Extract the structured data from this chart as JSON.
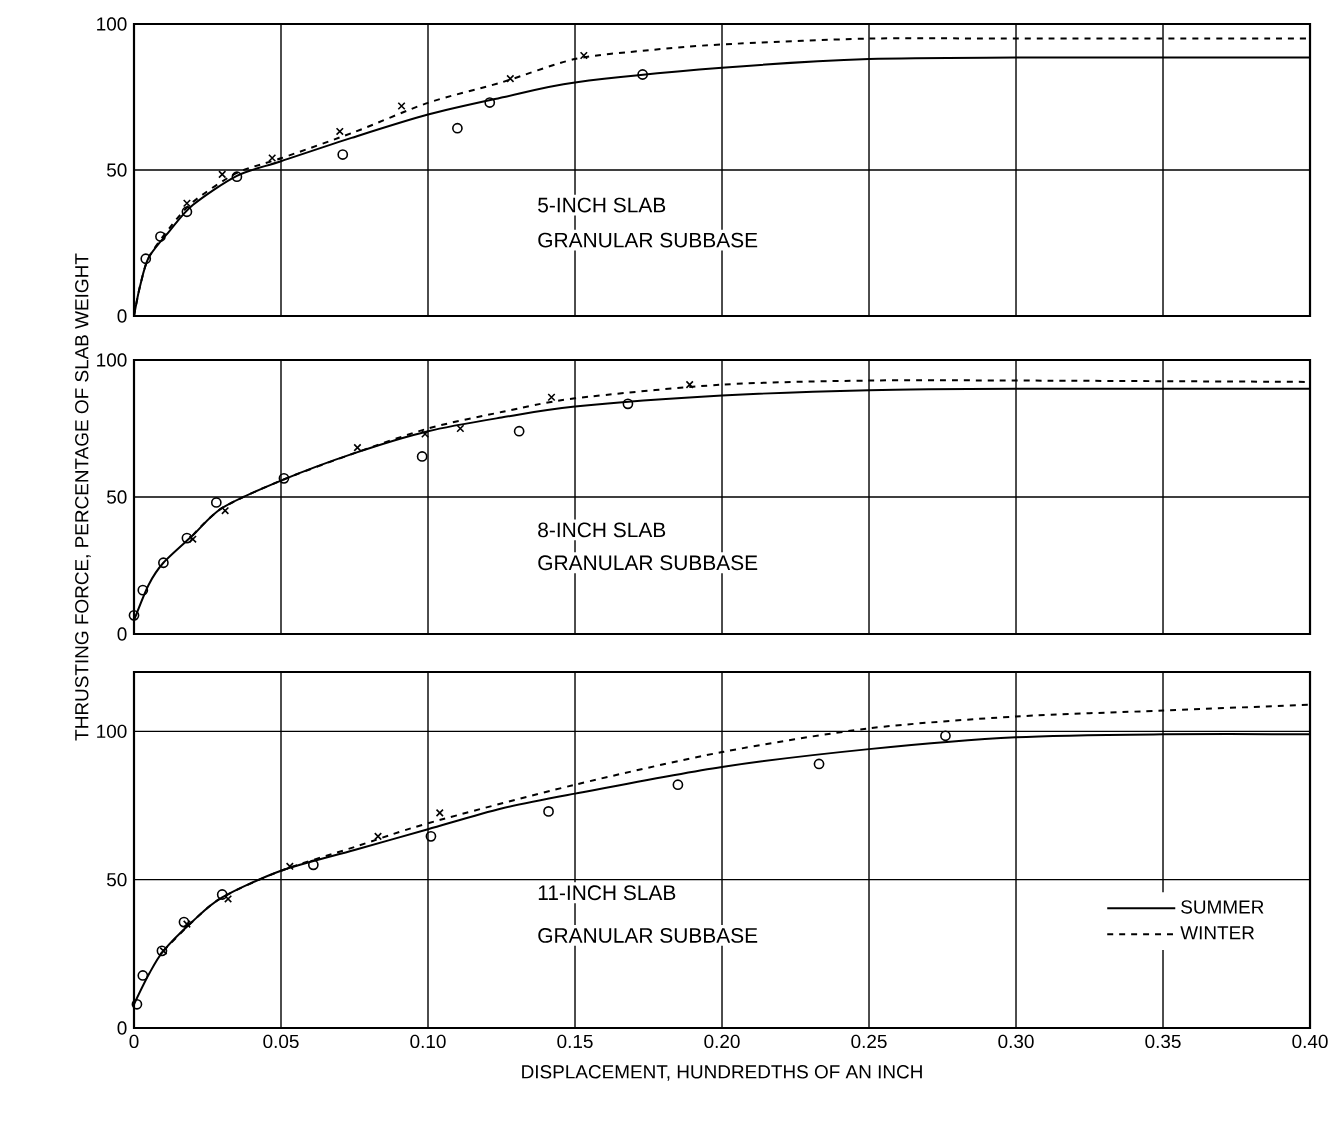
{
  "chart_data": [
    {
      "type": "line",
      "xlim": [
        0,
        0.4
      ],
      "ylim": [
        0,
        100
      ],
      "xticks": [
        0,
        0.05,
        0.1,
        0.15,
        0.2,
        0.25,
        0.3,
        0.35,
        0.4
      ],
      "yticks": [
        0,
        50,
        100
      ],
      "grid": true,
      "tick_labels": "y",
      "annotations": [
        "5-INCH SLAB",
        "GRANULAR SUBBASE"
      ],
      "series": [
        {
          "type": "scatter",
          "marker": "circle",
          "color": "#000000",
          "x": [
            0.004,
            0.009,
            0.018,
            0.035,
            0.071,
            0.11,
            0.121,
            0.173
          ],
          "values": [
            19.6,
            27.2,
            35.7,
            47.7,
            55.3,
            64.3,
            73.1,
            82.7
          ]
        },
        {
          "line_style": "solid",
          "color": "#000000",
          "x": [
            0,
            0.002,
            0.005,
            0.012,
            0.02,
            0.035,
            0.05,
            0.074,
            0.1,
            0.126,
            0.15,
            0.2,
            0.25,
            0.3,
            0.4
          ],
          "values": [
            0,
            10,
            20,
            29,
            38,
            48,
            53,
            61,
            69,
            75,
            80,
            85,
            88,
            88.5,
            88.5
          ]
        },
        {
          "type": "scatter",
          "marker": "cross",
          "color": "#000000",
          "x": [
            0.018,
            0.03,
            0.047,
            0.07,
            0.091,
            0.128,
            0.153
          ],
          "values": [
            38.6,
            48.5,
            54.1,
            63.2,
            71.9,
            81.3,
            89.2
          ]
        },
        {
          "line_style": "dashed",
          "color": "#000000",
          "x": [
            0,
            0.002,
            0.005,
            0.012,
            0.02,
            0.035,
            0.05,
            0.075,
            0.1,
            0.125,
            0.15,
            0.175,
            0.2,
            0.25,
            0.3,
            0.4
          ],
          "values": [
            0,
            10,
            20,
            30,
            39,
            49,
            54,
            63,
            73,
            80,
            88,
            91,
            93,
            95,
            95,
            95
          ]
        }
      ]
    },
    {
      "type": "line",
      "xlim": [
        0,
        0.4
      ],
      "ylim": [
        0,
        100
      ],
      "xticks": [
        0,
        0.05,
        0.1,
        0.15,
        0.2,
        0.25,
        0.3,
        0.35,
        0.4
      ],
      "yticks": [
        0,
        50,
        100
      ],
      "grid": true,
      "tick_labels": "y",
      "ylabel": "THRUSTING FORCE, PERCENTAGE OF SLAB WEIGHT",
      "annotations": [
        "8-INCH SLAB",
        "GRANULAR SUBBASE"
      ],
      "series": [
        {
          "type": "scatter",
          "marker": "circle",
          "color": "#000000",
          "x": [
            0,
            0.003,
            0.01,
            0.018,
            0.028,
            0.051,
            0.098,
            0.131,
            0.168
          ],
          "values": [
            6.8,
            16,
            26,
            35,
            48,
            56.8,
            64.8,
            74,
            84
          ]
        },
        {
          "line_style": "solid",
          "color": "#000000",
          "x": [
            0,
            0.005,
            0.01,
            0.02,
            0.03,
            0.05,
            0.075,
            0.1,
            0.125,
            0.15,
            0.2,
            0.25,
            0.3,
            0.4
          ],
          "values": [
            5,
            18,
            26,
            36,
            46,
            56,
            66,
            74,
            79,
            83,
            87,
            89,
            89.5,
            89.5
          ]
        },
        {
          "type": "scatter",
          "marker": "cross",
          "color": "#000000",
          "x": [
            0.02,
            0.031,
            0.076,
            0.099,
            0.111,
            0.142,
            0.189
          ],
          "values": [
            34.6,
            45,
            68,
            73,
            75,
            86.4,
            91
          ]
        },
        {
          "line_style": "dashed",
          "color": "#000000",
          "x": [
            0.02,
            0.03,
            0.05,
            0.075,
            0.1,
            0.125,
            0.15,
            0.2,
            0.25,
            0.3,
            0.4
          ],
          "values": [
            36,
            46,
            56,
            66,
            75,
            81,
            86,
            91,
            92.5,
            92.5,
            92
          ]
        }
      ]
    },
    {
      "type": "line",
      "xlim": [
        0,
        0.4
      ],
      "ylim": [
        0,
        120
      ],
      "xticks": [
        0,
        {
          "value": 0.05,
          "label": "0.05"
        },
        {
          "value": 0.1,
          "label": "0.10"
        },
        {
          "value": 0.15,
          "label": "0.15"
        },
        {
          "value": 0.2,
          "label": "0.20"
        },
        {
          "value": 0.25,
          "label": "0.25"
        },
        {
          "value": 0.3,
          "label": "0.30"
        },
        {
          "value": 0.35,
          "label": "0.35"
        },
        {
          "value": 0.4,
          "label": "0.40"
        }
      ],
      "yticks": [
        0,
        50,
        100
      ],
      "grid": true,
      "legend": "right",
      "xlabel": "DISPLACEMENT, HUNDREDTHS OF AN INCH",
      "annotations": [
        "11-INCH SLAB",
        "GRANULAR SUBBASE"
      ],
      "series": [
        {
          "type": "scatter",
          "marker": "circle",
          "color": "#000000",
          "x": [
            0.001,
            0.003,
            0.0095,
            0.017,
            0.03,
            0.061,
            0.101,
            0.141,
            0.185,
            0.233,
            0.276
          ],
          "values": [
            8,
            17.7,
            26,
            35.7,
            45,
            55,
            64.6,
            73,
            82,
            89,
            98.5
          ]
        },
        {
          "name": "SUMMER",
          "line_style": "solid",
          "color": "#000000",
          "x": [
            0,
            0.005,
            0.01,
            0.02,
            0.03,
            0.05,
            0.075,
            0.1,
            0.125,
            0.15,
            0.2,
            0.25,
            0.3,
            0.35,
            0.4
          ],
          "values": [
            8,
            18,
            26,
            36,
            44,
            53,
            60,
            67,
            74,
            79,
            88,
            94,
            98,
            99,
            99
          ]
        },
        {
          "type": "scatter",
          "marker": "cross",
          "color": "#000000",
          "x": [
            0.01,
            0.018,
            0.032,
            0.053,
            0.083,
            0.104
          ],
          "values": [
            26,
            35,
            43.5,
            54.5,
            64.6,
            72.5
          ]
        },
        {
          "name": "WINTER",
          "line_style": "dashed",
          "color": "#000000",
          "x": [
            0.01,
            0.02,
            0.03,
            0.05,
            0.075,
            0.1,
            0.15,
            0.2,
            0.25,
            0.3,
            0.35,
            0.4
          ],
          "values": [
            26,
            36,
            44,
            53,
            61,
            69,
            82,
            93,
            101,
            105,
            107,
            109
          ]
        }
      ]
    }
  ]
}
